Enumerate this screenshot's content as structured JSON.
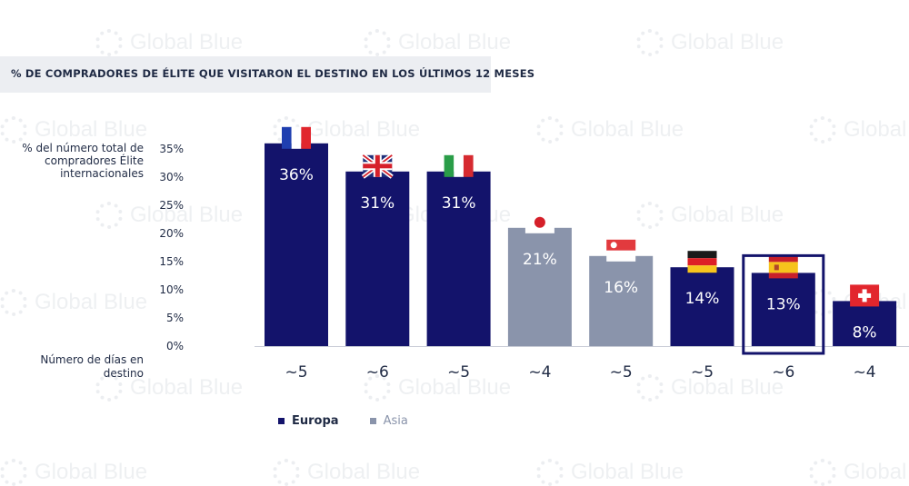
{
  "title": "% DE COMPRADORES DE ÉLITE QUE VISITARON EL DESTINO EN LOS ÚLTIMOS 12 MESES",
  "watermark_text": "Global Blue",
  "chart_data": {
    "type": "bar",
    "ylabel": "% del número total de compradores Élite internacionales",
    "xlabel": "Número de días en destino",
    "ylim": [
      0,
      35
    ],
    "yticks": [
      "35%",
      "30%",
      "25%",
      "20%",
      "15%",
      "10%",
      "5%",
      "0%"
    ],
    "ytick_values": [
      35,
      30,
      25,
      20,
      15,
      10,
      5,
      0
    ],
    "categories": [
      "France",
      "United Kingdom",
      "Italy",
      "Japan",
      "Singapore",
      "Germany",
      "Spain",
      "Switzerland"
    ],
    "values": [
      36,
      31,
      31,
      21,
      16,
      14,
      13,
      8
    ],
    "value_labels": [
      "36%",
      "31%",
      "31%",
      "21%",
      "16%",
      "14%",
      "13%",
      "8%"
    ],
    "regions": [
      "Europa",
      "Europa",
      "Europa",
      "Asia",
      "Asia",
      "Europa",
      "Europa",
      "Europa"
    ],
    "flags": [
      "france-flag",
      "uk-flag",
      "italy-flag",
      "japan-flag",
      "singapore-flag",
      "germany-flag",
      "spain-flag",
      "switzerland-flag"
    ],
    "days": [
      "~5",
      "~6",
      "~5",
      "~4",
      "~5",
      "~5",
      "~6",
      "~4"
    ],
    "highlighted": "Spain",
    "legend": [
      {
        "name": "Europa",
        "color": "#13136b"
      },
      {
        "name": "Asia",
        "color": "#8a94ab"
      }
    ],
    "grid": false,
    "legend_position": "bottom-left"
  },
  "colors": {
    "europe": "#13136b",
    "asia": "#8a94ab",
    "highlight_border": "#13136b",
    "baseline": "#c8ccd6"
  }
}
